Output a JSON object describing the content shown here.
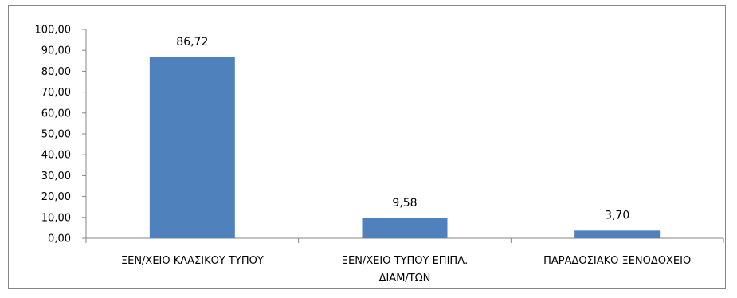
{
  "chart_data": {
    "type": "bar",
    "title": "",
    "xlabel": "",
    "ylabel": "",
    "categories": [
      [
        "ΞΕΝ/ΧΕΙΟ ΚΛΑΣΙΚΟΥ ΤΥΠΟΥ"
      ],
      [
        "ΞΕΝ/ΧΕΙΟ ΤΥΠΟΥ ΕΠΙΠΛ.",
        "ΔΙΑΜ/ΤΩΝ"
      ],
      [
        "ΠΑΡΑΔΟΣΙΑΚΟ ΞΕΝΟΔΟΧΕΙΟ"
      ]
    ],
    "values": [
      86.72,
      9.58,
      3.7
    ],
    "data_labels": [
      "86,72",
      "9,58",
      "3,70"
    ],
    "ylim": [
      0,
      100
    ],
    "yticks": [
      0,
      10,
      20,
      30,
      40,
      50,
      60,
      70,
      80,
      90,
      100
    ],
    "ytick_labels": [
      "0,00",
      "10,00",
      "20,00",
      "30,00",
      "40,00",
      "50,00",
      "60,00",
      "70,00",
      "80,00",
      "90,00",
      "100,00"
    ],
    "bar_color": "#4f81bd",
    "axis_color": "#868686",
    "grid": false,
    "legend": "none"
  }
}
